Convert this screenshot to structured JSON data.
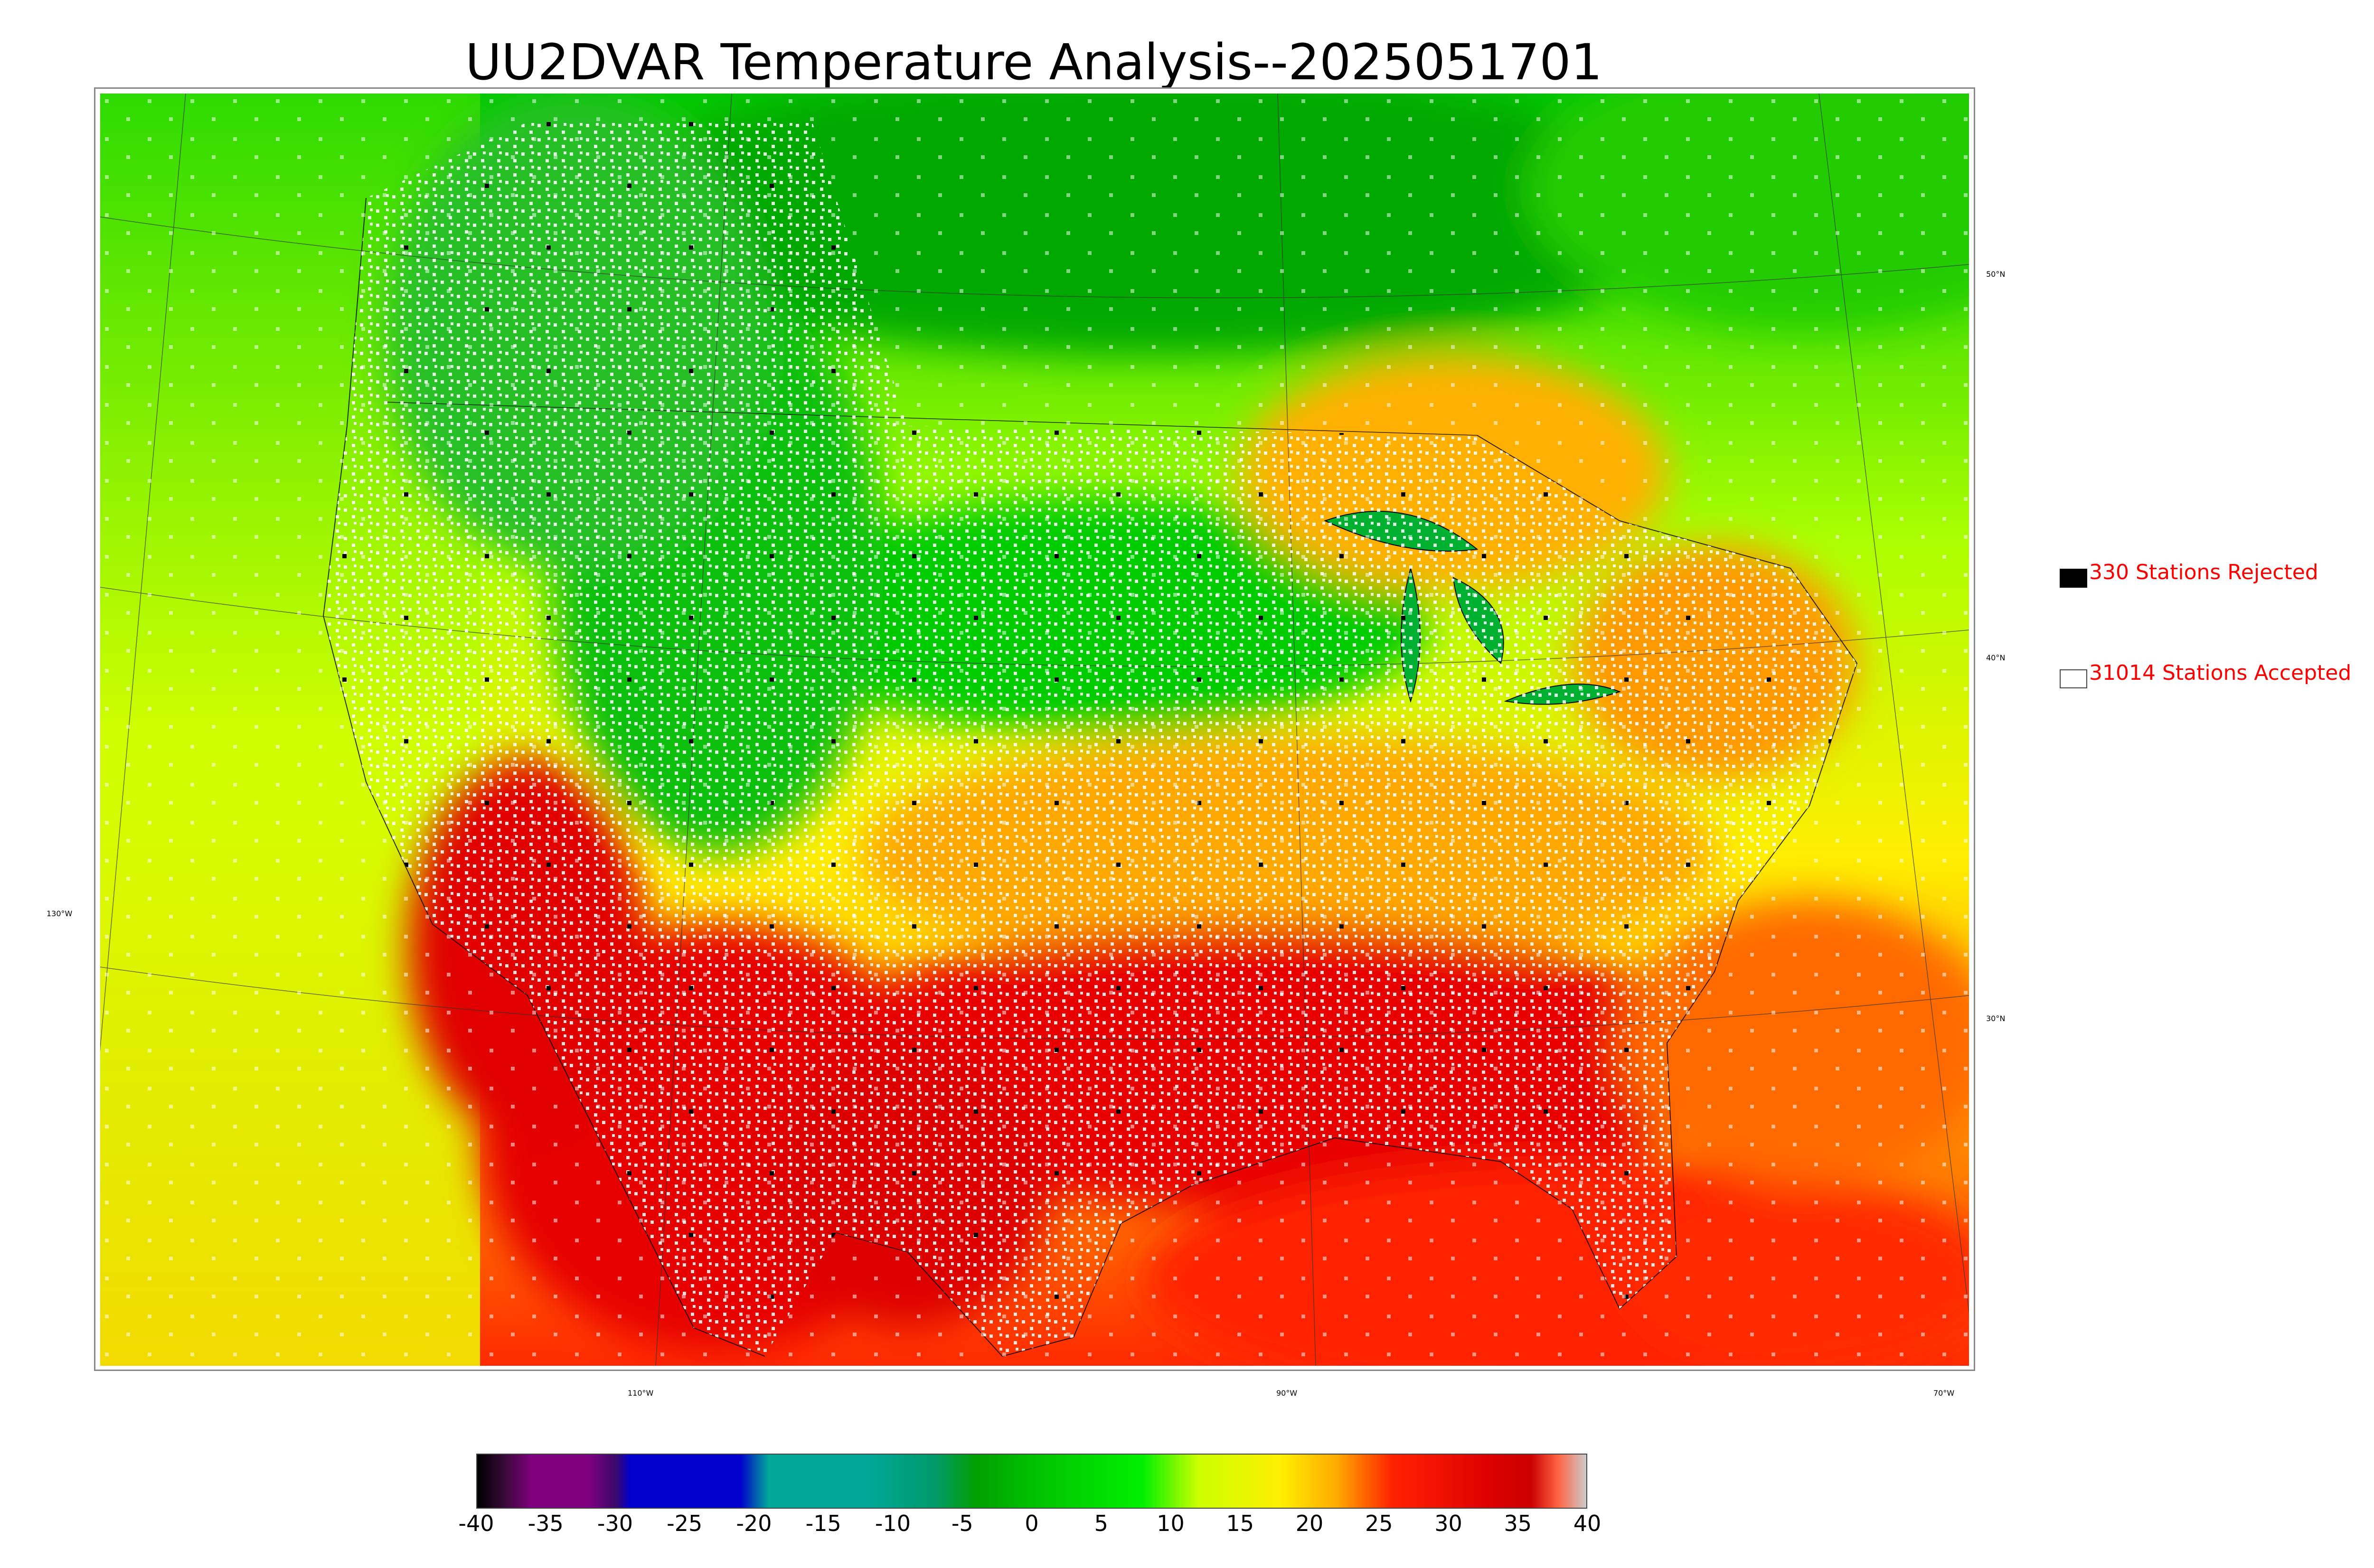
{
  "title": "UU2DVAR Temperature Analysis--2025051701",
  "legend": {
    "rejected_label": "330 Stations Rejected",
    "rejected_color": "#000000",
    "accepted_label": "31014 Stations Accepted",
    "accepted_color": "#ffffff",
    "text_color": "#ff0000"
  },
  "grid_labels": {
    "lat_50": "50°N",
    "lat_40": "40°N",
    "lat_30": "30°N",
    "lon_130": "130°W",
    "lon_110": "110°W",
    "lon_90": "90°W",
    "lon_70": "70°W"
  },
  "colorbar": {
    "ticks": [
      "-40",
      "-35",
      "-30",
      "-25",
      "-20",
      "-15",
      "-10",
      "-5",
      "0",
      "5",
      "10",
      "15",
      "20",
      "25",
      "30",
      "35",
      "40"
    ],
    "min": -40,
    "max": 40,
    "colors": [
      {
        "v": -40,
        "c": "#000000"
      },
      {
        "v": -38,
        "c": "#3a0a3a"
      },
      {
        "v": -36,
        "c": "#800080"
      },
      {
        "v": -32,
        "c": "#800080"
      },
      {
        "v": -30,
        "c": "#3a0a6a"
      },
      {
        "v": -29,
        "c": "#0000cc"
      },
      {
        "v": -21,
        "c": "#0000cc"
      },
      {
        "v": -19,
        "c": "#00a89a"
      },
      {
        "v": -12,
        "c": "#00a89a"
      },
      {
        "v": -7,
        "c": "#009a6a"
      },
      {
        "v": -4,
        "c": "#00a000"
      },
      {
        "v": 0,
        "c": "#00c000"
      },
      {
        "v": 8,
        "c": "#00f000"
      },
      {
        "v": 12,
        "c": "#ccff00"
      },
      {
        "v": 18,
        "c": "#ffee00"
      },
      {
        "v": 22,
        "c": "#ffaa00"
      },
      {
        "v": 26,
        "c": "#ff2200"
      },
      {
        "v": 33,
        "c": "#dd0000"
      },
      {
        "v": 36,
        "c": "#cc0000"
      },
      {
        "v": 38,
        "c": "#ff6644"
      },
      {
        "v": 40,
        "c": "#cccccc"
      }
    ]
  },
  "colors": {
    "hot": "#e80000",
    "warm": "#ff9900",
    "mild": "#ffee00",
    "cool": "#ccff00",
    "cold": "#00d000",
    "colder": "#00a000"
  }
}
